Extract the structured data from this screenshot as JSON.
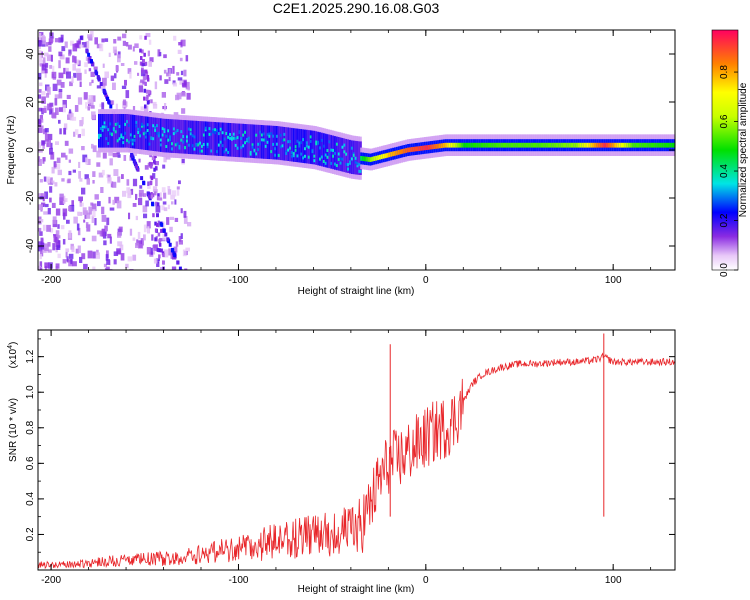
{
  "chart_data": [
    {
      "type": "heatmap",
      "title": "C2E1.2025.290.16.08.G03",
      "xlabel": "Height of straight line (km)",
      "ylabel": "Frequency (Hz)",
      "xlim": [
        -207,
        133
      ],
      "ylim": [
        -50,
        50
      ],
      "xticks": [
        -200,
        -100,
        0,
        100
      ],
      "yticks": [
        -40,
        -20,
        0,
        20,
        40
      ],
      "colorbar": {
        "label": "Normalized spectral amplitude",
        "range": [
          0,
          0.97
        ],
        "ticks": [
          "0.0",
          "0.2",
          "0.4",
          "0.6",
          "0.8"
        ]
      },
      "dominant_trace": {
        "x": [
          -160,
          -140,
          -120,
          -100,
          -80,
          -60,
          -40,
          -30,
          -20,
          -10,
          0,
          10,
          20,
          40,
          60,
          80,
          95,
          110,
          133
        ],
        "frequency": [
          8,
          6,
          5,
          4,
          3,
          1,
          -3,
          -4,
          -2,
          0,
          1,
          2,
          2,
          2,
          2,
          2,
          2,
          2,
          2
        ],
        "amplitude": [
          0.3,
          0.25,
          0.3,
          0.3,
          0.35,
          0.35,
          0.3,
          0.6,
          0.8,
          0.9,
          0.95,
          0.8,
          0.5,
          0.55,
          0.55,
          0.6,
          0.95,
          0.55,
          0.5
        ]
      }
    },
    {
      "type": "line",
      "xlabel": "Height of straight line (km)",
      "ylabel": "SNR (10 * v/v)",
      "yscale_label": "(x10",
      "yscale_exp": "4",
      "xlim": [
        -207,
        133
      ],
      "ylim": [
        0,
        1.35
      ],
      "xticks": [
        -200,
        -100,
        0,
        100
      ],
      "yticks": [
        0.2,
        0.4,
        0.6,
        0.8,
        1.0,
        1.2
      ],
      "series": [
        {
          "name": "SNR",
          "color": "#e8262a",
          "x": [
            -207,
            -190,
            -170,
            -150,
            -130,
            -120,
            -110,
            -100,
            -90,
            -80,
            -70,
            -60,
            -50,
            -40,
            -35,
            -30,
            -25,
            -20,
            -15,
            -10,
            -5,
            0,
            5,
            10,
            15,
            20,
            25,
            30,
            40,
            50,
            60,
            70,
            80,
            90,
            95,
            100,
            110,
            120,
            133
          ],
          "y": [
            0.03,
            0.03,
            0.05,
            0.06,
            0.07,
            0.09,
            0.11,
            0.12,
            0.14,
            0.16,
            0.18,
            0.19,
            0.21,
            0.22,
            0.25,
            0.35,
            0.5,
            0.6,
            0.62,
            0.66,
            0.7,
            0.74,
            0.78,
            0.8,
            0.84,
            0.95,
            1.05,
            1.1,
            1.14,
            1.16,
            1.16,
            1.17,
            1.17,
            1.18,
            1.2,
            1.17,
            1.17,
            1.17,
            1.17
          ]
        }
      ],
      "spikes": [
        {
          "x": -19,
          "y": 1.27
        },
        {
          "x": 95,
          "y": 1.33
        }
      ]
    }
  ]
}
